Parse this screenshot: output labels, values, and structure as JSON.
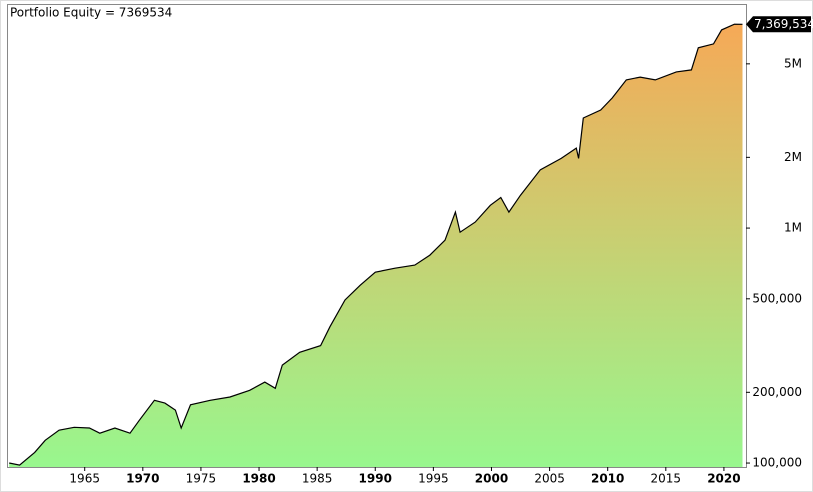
{
  "chart_data": {
    "type": "area",
    "title": "Portfolio Equity = 7369534",
    "x": [
      1958.5,
      1959.4,
      1960.7,
      1961.6,
      1962.8,
      1964.1,
      1965.4,
      1966.3,
      1967.6,
      1968.9,
      1969.7,
      1971.0,
      1971.9,
      1972.8,
      1973.3,
      1974.1,
      1975.8,
      1977.5,
      1979.2,
      1980.5,
      1981.4,
      1982.0,
      1983.5,
      1985.3,
      1986.1,
      1987.4,
      1988.7,
      1990.0,
      1991.7,
      1993.4,
      1994.7,
      1996.0,
      1996.9,
      1997.3,
      1998.6,
      1999.9,
      2000.8,
      2001.5,
      2002.5,
      2004.2,
      2006.0,
      2007.3,
      2007.5,
      2007.9,
      2009.4,
      2010.4,
      2011.6,
      2012.8,
      2014.1,
      2015.9,
      2017.2,
      2017.8,
      2019.1,
      2019.8,
      2020.9,
      2021.6
    ],
    "series": [
      {
        "name": "Portfolio Equity",
        "color": "#000000",
        "values": [
          100000,
          98000,
          111000,
          125000,
          138000,
          142000,
          141000,
          134000,
          141000,
          134000,
          152000,
          185000,
          180000,
          168000,
          141000,
          177000,
          185000,
          191000,
          204000,
          221000,
          208000,
          261000,
          296000,
          316000,
          380000,
          494000,
          571000,
          649000,
          675000,
          696000,
          767000,
          888000,
          1170000,
          960000,
          1060000,
          1250000,
          1350000,
          1170000,
          1380000,
          1770000,
          1980000,
          2190000,
          1980000,
          2940000,
          3180000,
          3580000,
          4270000,
          4390000,
          4270000,
          4620000,
          4710000,
          5850000,
          6080000,
          6970000,
          7370000,
          7369534
        ]
      }
    ],
    "last_label": {
      "value": 7369534,
      "label": "7,369,534"
    },
    "gradient": [
      "#f6a957",
      "#98f78e"
    ],
    "log_y": true,
    "xlim": [
      1958.4,
      2021.9
    ],
    "xticks": [
      1965,
      1970,
      1975,
      1980,
      1985,
      1990,
      1995,
      2000,
      2005,
      2010,
      2015,
      2020
    ],
    "ylim": [
      96200,
      8900000
    ],
    "yticks": [
      {
        "value": 100000,
        "label": "100,000"
      },
      {
        "value": 200000,
        "label": "200,000"
      },
      {
        "value": 500000,
        "label": "500,000"
      },
      {
        "value": 1000000,
        "label": "1M"
      },
      {
        "value": 2000000,
        "label": "2M"
      },
      {
        "value": 5000000,
        "label": "5M"
      }
    ]
  }
}
